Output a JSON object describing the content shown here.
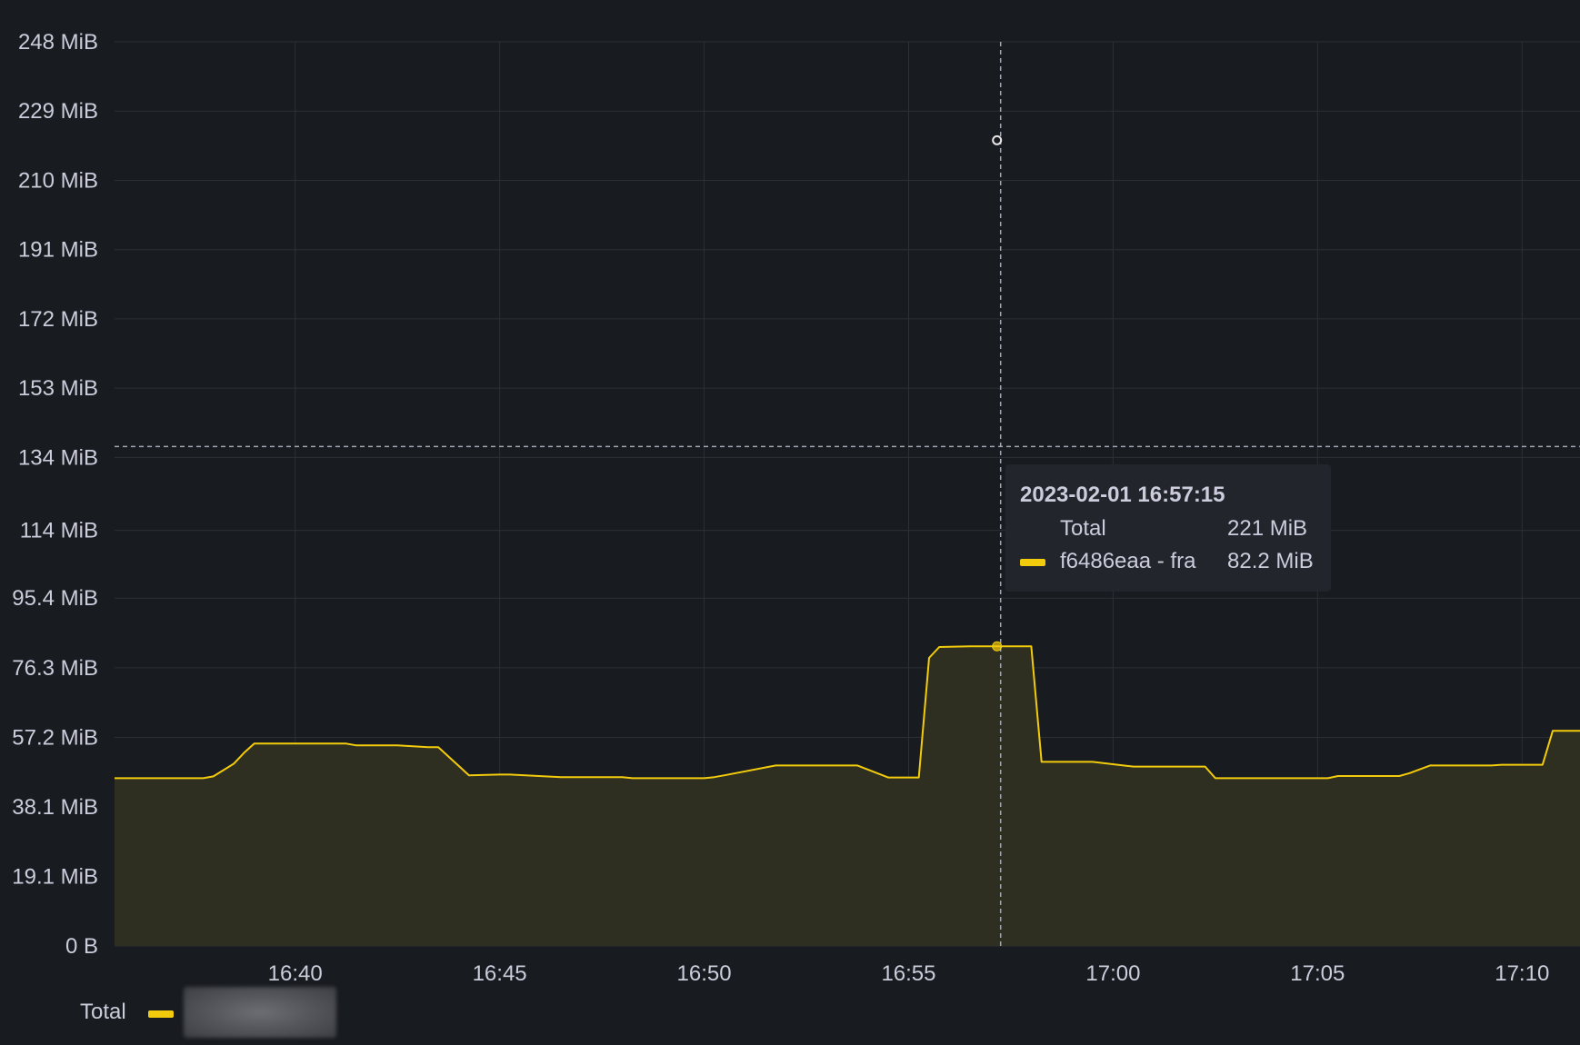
{
  "colors": {
    "series": "#f2cc0c",
    "fill": "#2e2e21",
    "grid": "#2c3036",
    "crosshair": "#9fa7b3",
    "text": "#ccccdc"
  },
  "tooltip": {
    "title": "2023-02-01 16:57:15",
    "rows": [
      {
        "name": "Total",
        "value": "221 MiB"
      },
      {
        "name": "f6486eaa - fra",
        "value": "82.2 MiB"
      }
    ]
  },
  "legend": {
    "label": "Total"
  },
  "chart_data": {
    "type": "area",
    "title": "",
    "xlabel": "",
    "ylabel": "",
    "grid": true,
    "legend_position": "bottom-left",
    "y_unit": "MiB",
    "ylim": [
      0,
      248
    ],
    "y_ticks": [
      {
        "value": 0,
        "label": "0 B"
      },
      {
        "value": 19.1,
        "label": "19.1 MiB"
      },
      {
        "value": 38.1,
        "label": "38.1 MiB"
      },
      {
        "value": 57.2,
        "label": "57.2 MiB"
      },
      {
        "value": 76.3,
        "label": "76.3 MiB"
      },
      {
        "value": 95.4,
        "label": "95.4 MiB"
      },
      {
        "value": 114,
        "label": "114 MiB"
      },
      {
        "value": 134,
        "label": "134 MiB"
      },
      {
        "value": 153,
        "label": "153 MiB"
      },
      {
        "value": 172,
        "label": "172 MiB"
      },
      {
        "value": 191,
        "label": "191 MiB"
      },
      {
        "value": 210,
        "label": "210 MiB"
      },
      {
        "value": 229,
        "label": "229 MiB"
      },
      {
        "value": 248,
        "label": "248 MiB"
      }
    ],
    "xlim": [
      "16:35:35",
      "17:11:25"
    ],
    "x_ticks": [
      "16:40",
      "16:45",
      "16:50",
      "16:55",
      "17:00",
      "17:05",
      "17:10"
    ],
    "hover": {
      "x": "16:57:15",
      "y": 82.2,
      "total_y": 221,
      "crosshair_y": 137
    },
    "series": [
      {
        "name": "f6486eaa - fra",
        "x": [
          "16:35:35",
          "16:37:45",
          "16:38:00",
          "16:38:30",
          "16:38:45",
          "16:39:00",
          "16:41:15",
          "16:41:30",
          "16:42:00",
          "16:42:30",
          "16:43:15",
          "16:43:30",
          "16:44:15",
          "16:45:00",
          "16:45:15",
          "16:46:30",
          "16:48:00",
          "16:48:15",
          "16:50:00",
          "16:50:15",
          "16:50:30",
          "16:51:45",
          "16:53:30",
          "16:53:45",
          "16:54:30",
          "16:55:00",
          "16:55:15",
          "16:55:30",
          "16:55:45",
          "16:56:30",
          "16:57:15",
          "16:57:45",
          "16:58:00",
          "16:58:15",
          "16:59:30",
          "17:00:15",
          "17:00:30",
          "17:01:00",
          "17:02:15",
          "17:02:30",
          "17:03:00",
          "17:04:45",
          "17:05:15",
          "17:05:30",
          "17:06:45",
          "17:07:00",
          "17:07:15",
          "17:07:45",
          "17:09:15",
          "17:09:30",
          "17:10:30",
          "17:10:45",
          "17:11:25"
        ],
        "values": [
          46.0,
          46.0,
          46.5,
          50.0,
          53.0,
          55.5,
          55.5,
          55.0,
          55.0,
          55.0,
          54.5,
          54.5,
          46.8,
          47.0,
          47.0,
          46.3,
          46.3,
          46.0,
          46.0,
          46.3,
          46.8,
          49.5,
          49.5,
          49.5,
          46.2,
          46.2,
          46.2,
          79.0,
          82.0,
          82.2,
          82.2,
          82.2,
          82.2,
          50.5,
          50.5,
          49.5,
          49.2,
          49.2,
          49.2,
          46.0,
          46.0,
          46.0,
          46.0,
          46.6,
          46.6,
          46.6,
          47.4,
          49.5,
          49.5,
          49.7,
          49.7,
          59.0,
          59.0
        ]
      }
    ]
  }
}
